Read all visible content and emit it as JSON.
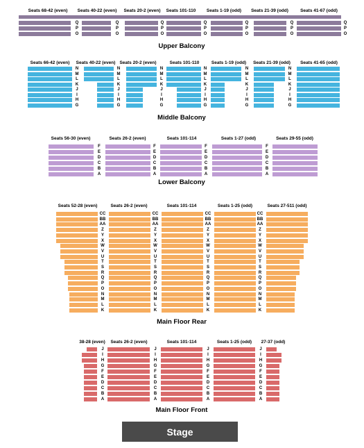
{
  "colors": {
    "upper_balcony": "#8c7b9b",
    "middle_balcony": "#45b4df",
    "lower_balcony": "#be9cd3",
    "main_floor_rear": "#f6ad5f",
    "main_floor_front": "#d96a6a",
    "stage": "#4a4a4a"
  },
  "stage_label": "Stage",
  "levels": [
    {
      "id": "upper-balcony",
      "name": "Upper Balcony",
      "color_key": "upper_balcony",
      "row_labels": [
        "Q",
        "P",
        "O"
      ],
      "sections": [
        "Seats 68-42 (even)",
        "Seats 40-22 (even)",
        "Seats 20-2 (even)",
        "Seats 101-110",
        "Seats 1-19 (odd)",
        "Seats 21-39 (odd)",
        "Seats 41-67 (odd)"
      ]
    },
    {
      "id": "middle-balcony",
      "name": "Middle Balcony",
      "color_key": "middle_balcony",
      "row_labels": [
        "N",
        "M",
        "L",
        "K",
        "J",
        "I",
        "H",
        "G"
      ],
      "sections": [
        "Seats 66-42 (even)",
        "Seats 40-22 (even)",
        "Seats 20-2 (even)",
        "Seats 101-110",
        "Seats 1-19 (odd)",
        "Seats 21-39 (odd)",
        "Seats 41-65 (odd)"
      ]
    },
    {
      "id": "lower-balcony",
      "name": "Lower Balcony",
      "color_key": "lower_balcony",
      "row_labels": [
        "F",
        "E",
        "D",
        "C",
        "B",
        "A"
      ],
      "sections": [
        "Seats 56-30 (even)",
        "Seats 26-2 (even)",
        "Seats 101-114",
        "Seats 1-27 (odd)",
        "Seats 29-55 (odd)"
      ]
    },
    {
      "id": "main-floor-rear",
      "name": "Main Floor Rear",
      "color_key": "main_floor_rear",
      "row_labels": [
        "CC",
        "BB",
        "AA",
        "Z",
        "Y",
        "X",
        "W",
        "V",
        "U",
        "T",
        "S",
        "R",
        "Q",
        "P",
        "O",
        "N",
        "M",
        "L",
        "K"
      ],
      "sections": [
        "Seats 52-28 (even)",
        "Seats 26-2 (even)",
        "Seats 101-114",
        "Seats 1-25 (odd)",
        "Seats 27-511 (odd)"
      ]
    },
    {
      "id": "main-floor-front",
      "name": "Main Floor Front",
      "color_key": "main_floor_front",
      "row_labels": [
        "J",
        "I",
        "H",
        "G",
        "F",
        "E",
        "D",
        "C",
        "B",
        "A"
      ],
      "sections": [
        "38-28 (even)",
        "Seats 26-2 (even)",
        "Seats 101-114",
        "Seats 1-25 (odd)",
        "27-37 (odd)"
      ]
    }
  ]
}
